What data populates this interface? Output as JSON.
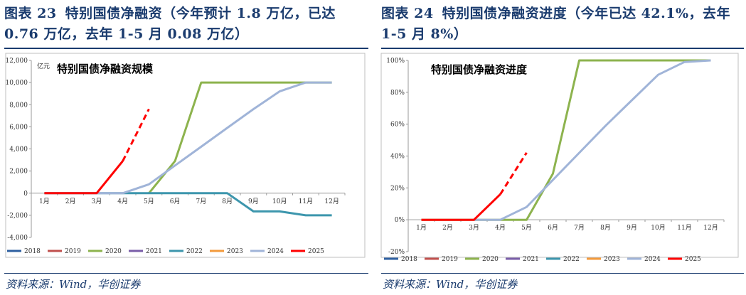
{
  "left": {
    "fig_no": "图表 23",
    "title": "特别国债净融资（今年预计 1.8 万亿，已达 0.76 万亿，去年 1-5 月 0.08 万亿）",
    "source": "资料来源：Wind，华创证券"
  },
  "right": {
    "fig_no": "图表 24",
    "title": "特别国债净融资进度（今年已达 42.1%，去年 1-5 月 8%）",
    "source": "资料来源：Wind，华创证券"
  },
  "chart_data": [
    {
      "type": "line",
      "title": "特别国债净融资规模",
      "unit_label": "亿元",
      "categories": [
        "1月",
        "2月",
        "3月",
        "4月",
        "5月",
        "6月",
        "7月",
        "8月",
        "9月",
        "10月",
        "11月",
        "12月"
      ],
      "ylim": [
        -4000,
        12000
      ],
      "yticks": [
        -4000,
        -2000,
        0,
        2000,
        4000,
        6000,
        8000,
        10000,
        12000
      ],
      "ytick_labels": [
        "-4,000",
        "-2,000",
        "0",
        "2,000",
        "4,000",
        "6,000",
        "8,000",
        "10,000",
        "12,000"
      ],
      "legend_position": "bottom",
      "series": [
        {
          "name": "2018",
          "color": "#2e5fa0",
          "dashed": false,
          "points": []
        },
        {
          "name": "2019",
          "color": "#c0504d",
          "dashed": false,
          "points": []
        },
        {
          "name": "2020",
          "color": "#8db34e",
          "dashed": false,
          "points": [
            [
              5,
              0
            ],
            [
              6,
              2900
            ],
            [
              7,
              10000
            ],
            [
              12,
              10000
            ]
          ]
        },
        {
          "name": "2021",
          "color": "#7a5ea8",
          "dashed": false,
          "points": []
        },
        {
          "name": "2022",
          "color": "#3d96ad",
          "dashed": false,
          "points": [
            [
              1,
              0
            ],
            [
              8,
              0
            ],
            [
              9,
              -1650
            ],
            [
              10,
              -1650
            ],
            [
              11,
              -2000
            ],
            [
              12,
              -2000
            ]
          ]
        },
        {
          "name": "2023",
          "color": "#f39a3c",
          "dashed": false,
          "points": []
        },
        {
          "name": "2024",
          "color": "#a0b4d8",
          "dashed": false,
          "points": [
            [
              3,
              0
            ],
            [
              4,
              0
            ],
            [
              5,
              800
            ],
            [
              6,
              2500
            ],
            [
              7,
              4200
            ],
            [
              8,
              5900
            ],
            [
              9,
              7600
            ],
            [
              10,
              9200
            ],
            [
              11,
              10000
            ],
            [
              12,
              10000
            ]
          ]
        },
        {
          "name": "2025",
          "color": "#ff0000",
          "dashed": false,
          "points": [
            [
              1,
              0
            ],
            [
              2,
              0
            ],
            [
              3,
              0
            ],
            [
              4,
              2900
            ]
          ]
        },
        {
          "name": "2025 预计",
          "color": "#ff0000",
          "dashed": true,
          "legend": false,
          "points": [
            [
              4,
              2900
            ],
            [
              5,
              7600
            ]
          ]
        }
      ]
    },
    {
      "type": "line",
      "title": "特别国债净融资进度",
      "categories": [
        "1月",
        "2月",
        "3月",
        "4月",
        "5月",
        "6月",
        "7月",
        "8月",
        "9月",
        "10月",
        "11月",
        "12月"
      ],
      "ylim": [
        -20,
        100
      ],
      "yticks": [
        -20,
        0,
        20,
        40,
        60,
        80,
        100
      ],
      "ytick_labels": [
        "-20%",
        "0%",
        "20%",
        "40%",
        "60%",
        "80%",
        "100%"
      ],
      "legend_position": "bottom",
      "series": [
        {
          "name": "2018",
          "color": "#2e5fa0",
          "dashed": false,
          "points": []
        },
        {
          "name": "2019",
          "color": "#c0504d",
          "dashed": false,
          "points": []
        },
        {
          "name": "2020",
          "color": "#8db34e",
          "dashed": false,
          "points": [
            [
              1,
              0
            ],
            [
              5,
              0
            ],
            [
              6,
              29
            ],
            [
              7,
              100
            ],
            [
              12,
              100
            ]
          ]
        },
        {
          "name": "2021",
          "color": "#7a5ea8",
          "dashed": false,
          "points": []
        },
        {
          "name": "2022",
          "color": "#3d96ad",
          "dashed": false,
          "points": []
        },
        {
          "name": "2023",
          "color": "#f39a3c",
          "dashed": false,
          "points": []
        },
        {
          "name": "2024",
          "color": "#a0b4d8",
          "dashed": false,
          "points": [
            [
              3,
              0
            ],
            [
              4,
              0
            ],
            [
              5,
              8
            ],
            [
              6,
              25
            ],
            [
              7,
              42
            ],
            [
              8,
              59
            ],
            [
              9,
              75
            ],
            [
              10,
              91
            ],
            [
              11,
              99
            ],
            [
              12,
              100
            ]
          ]
        },
        {
          "name": "2025",
          "color": "#ff0000",
          "dashed": false,
          "points": [
            [
              1,
              0
            ],
            [
              2,
              0
            ],
            [
              3,
              0
            ],
            [
              4,
              16
            ]
          ]
        },
        {
          "name": "2025 预计",
          "color": "#ff0000",
          "dashed": true,
          "legend": false,
          "points": [
            [
              4,
              16
            ],
            [
              5,
              42.1
            ]
          ]
        }
      ]
    }
  ]
}
